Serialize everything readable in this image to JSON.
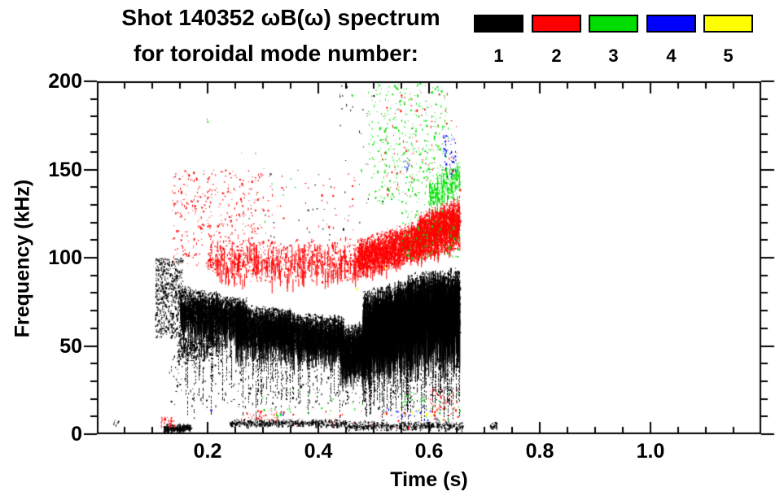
{
  "title": {
    "line1": "Shot 140352 ωB(ω) spectrum",
    "line2": "for toroidal mode number:"
  },
  "legend": {
    "entries": [
      {
        "label": "1",
        "color": "#000000"
      },
      {
        "label": "2",
        "color": "#ff0000"
      },
      {
        "label": "3",
        "color": "#00dd00"
      },
      {
        "label": "4",
        "color": "#0000ff"
      },
      {
        "label": "5",
        "color": "#ffff00"
      }
    ]
  },
  "chart_data": {
    "type": "scatter",
    "title": "Shot 140352 ωB(ω) spectrum for toroidal mode number: 1–5",
    "xlabel": "Time (s)",
    "ylabel": "Frequency (kHz)",
    "xlim": [
      0,
      1.2
    ],
    "ylim": [
      0,
      200
    ],
    "grid": false,
    "legend_position": "top-right",
    "x_major_ticks": [
      0.2,
      0.4,
      0.6,
      0.8,
      1.0
    ],
    "x_tick_labels": [
      "0.2",
      "0.4",
      "0.6",
      "0.8",
      "1.0"
    ],
    "x_minor_step": 0.05,
    "y_major_ticks": [
      0,
      50,
      100,
      150,
      200
    ],
    "y_tick_labels": [
      "0",
      "50",
      "100",
      "150",
      "200"
    ],
    "y_minor_step": 10,
    "series": [
      {
        "name": "toroidal mode n=1",
        "color": "#000000",
        "clusters": [
          {
            "kind": "cloud",
            "t": [
              0.105,
              0.155
            ],
            "f": [
              55,
              100
            ],
            "n": 600
          },
          {
            "kind": "band",
            "t": [
              0.145,
              0.23
            ],
            "fa": [
              38,
              60
            ],
            "fb": [
              45,
              62
            ],
            "n": 500,
            "streak": 0.05,
            "maxlen": 15
          },
          {
            "kind": "band",
            "t": [
              0.15,
              0.27
            ],
            "fa": [
              58,
              85
            ],
            "fb": [
              55,
              78
            ],
            "n": 3000,
            "streak": 0.12,
            "maxlen": 25
          },
          {
            "kind": "band",
            "t": [
              0.25,
              0.35
            ],
            "fa": [
              48,
              74
            ],
            "fb": [
              50,
              72
            ],
            "n": 3000,
            "streak": 0.15,
            "maxlen": 30
          },
          {
            "kind": "band",
            "t": [
              0.35,
              0.445
            ],
            "fa": [
              46,
              70
            ],
            "fb": [
              44,
              68
            ],
            "n": 2500,
            "streak": 0.15,
            "maxlen": 30
          },
          {
            "kind": "band",
            "t": [
              0.44,
              0.49
            ],
            "fa": [
              34,
              62
            ],
            "fb": [
              40,
              66
            ],
            "n": 1300,
            "streak": 0.2,
            "maxlen": 35
          },
          {
            "kind": "band",
            "t": [
              0.48,
              0.57
            ],
            "fa": [
              42,
              82
            ],
            "fb": [
              50,
              90
            ],
            "n": 4000,
            "streak": 0.25,
            "maxlen": 50
          },
          {
            "kind": "band",
            "t": [
              0.56,
              0.655
            ],
            "fa": [
              50,
              92
            ],
            "fb": [
              55,
              96
            ],
            "n": 4500,
            "streak": 0.25,
            "maxlen": 55
          },
          {
            "kind": "streaks",
            "t": [
              0.16,
              0.47
            ],
            "ftop": [
              45,
              60
            ],
            "fbot": [
              8,
              35
            ],
            "n": 60
          },
          {
            "kind": "streaks",
            "t": [
              0.48,
              0.655
            ],
            "ftop": [
              40,
              55
            ],
            "fbot": [
              5,
              25
            ],
            "n": 70
          },
          {
            "kind": "cloud",
            "t": [
              0.13,
              0.65
            ],
            "f": [
              15,
              45
            ],
            "n": 400
          },
          {
            "kind": "band",
            "t": [
              0.12,
              0.17
            ],
            "fa": [
              1,
              6
            ],
            "fb": [
              2,
              6
            ],
            "n": 300,
            "streak": 0,
            "maxlen": 0
          },
          {
            "kind": "band",
            "t": [
              0.24,
              0.45
            ],
            "fa": [
              4,
              9
            ],
            "fb": [
              4,
              9
            ],
            "n": 500,
            "streak": 0,
            "maxlen": 0
          },
          {
            "kind": "band",
            "t": [
              0.45,
              0.66
            ],
            "fa": [
              2,
              8
            ],
            "fb": [
              2,
              8
            ],
            "n": 450,
            "streak": 0,
            "maxlen": 0
          },
          {
            "kind": "cloud",
            "t": [
              0.3,
              0.52
            ],
            "f": [
              100,
              150
            ],
            "n": 35
          },
          {
            "kind": "cloud",
            "t": [
              0.42,
              0.5
            ],
            "f": [
              150,
              198
            ],
            "n": 20
          },
          {
            "kind": "cloud",
            "t": [
              0.71,
              0.722
            ],
            "f": [
              3,
              7
            ],
            "n": 35
          },
          {
            "kind": "cloud",
            "t": [
              0.025,
              0.04
            ],
            "f": [
              5,
              8
            ],
            "n": 8
          }
        ]
      },
      {
        "name": "toroidal mode n=2",
        "color": "#ff0000",
        "clusters": [
          {
            "kind": "cloud",
            "t": [
              0.135,
              0.3
            ],
            "f": [
              95,
              150
            ],
            "n": 380
          },
          {
            "kind": "band",
            "t": [
              0.2,
              0.47
            ],
            "fa": [
              85,
              112
            ],
            "fb": [
              85,
              112
            ],
            "n": 1000,
            "streak": 0.2,
            "maxlen": 18
          },
          {
            "kind": "band",
            "t": [
              0.47,
              0.58
            ],
            "fa": [
              88,
              112
            ],
            "fb": [
              98,
              122
            ],
            "n": 2400,
            "streak": 0.1,
            "maxlen": 12
          },
          {
            "kind": "band",
            "t": [
              0.58,
              0.655
            ],
            "fa": [
              98,
              126
            ],
            "fb": [
              104,
              136
            ],
            "n": 2600,
            "streak": 0.1,
            "maxlen": 12
          },
          {
            "kind": "cloud",
            "t": [
              0.5,
              0.655
            ],
            "f": [
              136,
              196
            ],
            "n": 80
          },
          {
            "kind": "cloud",
            "t": [
              0.28,
              0.47
            ],
            "f": [
              112,
              148
            ],
            "n": 45
          },
          {
            "kind": "cloud",
            "t": [
              0.115,
              0.14
            ],
            "f": [
              4,
              10
            ],
            "n": 30
          },
          {
            "kind": "cloud",
            "t": [
              0.26,
              0.34
            ],
            "f": [
              8,
              14
            ],
            "n": 40
          },
          {
            "kind": "cloud",
            "t": [
              0.6,
              0.652
            ],
            "f": [
              8,
              26
            ],
            "n": 50
          },
          {
            "kind": "cloud",
            "t": [
              0.35,
              0.58
            ],
            "f": [
              4,
              14
            ],
            "n": 25
          }
        ]
      },
      {
        "name": "toroidal mode n=3",
        "color": "#00dd00",
        "clusters": [
          {
            "kind": "cloud",
            "t": [
              0.49,
              0.635
            ],
            "f": [
              130,
              200
            ],
            "n": 400
          },
          {
            "kind": "band",
            "t": [
              0.6,
              0.655
            ],
            "fa": [
              126,
              146
            ],
            "fb": [
              134,
              158
            ],
            "n": 280,
            "streak": 0.15,
            "maxlen": 10
          },
          {
            "kind": "cloud",
            "t": [
              0.55,
              0.655
            ],
            "f": [
              100,
              128
            ],
            "n": 110
          },
          {
            "kind": "cloud",
            "t": [
              0.26,
              0.36
            ],
            "f": [
              120,
              160
            ],
            "n": 10
          },
          {
            "kind": "cloud",
            "t": [
              0.28,
              0.52
            ],
            "f": [
              10,
              26
            ],
            "n": 28
          },
          {
            "kind": "cloud",
            "t": [
              0.55,
              0.66
            ],
            "f": [
              8,
              25
            ],
            "n": 40
          },
          {
            "kind": "dots",
            "points": [
              [
                0.2,
                178
              ],
              [
                0.46,
                192
              ],
              [
                0.475,
                150
              ]
            ]
          }
        ]
      },
      {
        "name": "toroidal mode n=4",
        "color": "#0000ff",
        "clusters": [
          {
            "kind": "cloud",
            "t": [
              0.625,
              0.648
            ],
            "f": [
              146,
              170
            ],
            "n": 45
          },
          {
            "kind": "cloud",
            "t": [
              0.553,
              0.565
            ],
            "f": [
              150,
              162
            ],
            "n": 7
          },
          {
            "kind": "cloud",
            "t": [
              0.52,
              0.62
            ],
            "f": [
              8,
              16
            ],
            "n": 22
          },
          {
            "kind": "dots",
            "points": [
              [
                0.205,
                14
              ],
              [
                0.335,
                12
              ]
            ]
          }
        ]
      },
      {
        "name": "toroidal mode n=5",
        "color": "#ffff00",
        "clusters": [
          {
            "kind": "cloud",
            "t": [
              0.5,
              0.62
            ],
            "f": [
              8,
              15
            ],
            "n": 20
          },
          {
            "kind": "dots",
            "points": [
              [
                0.468,
                82
              ],
              [
                0.52,
                95
              ]
            ]
          }
        ]
      }
    ]
  }
}
